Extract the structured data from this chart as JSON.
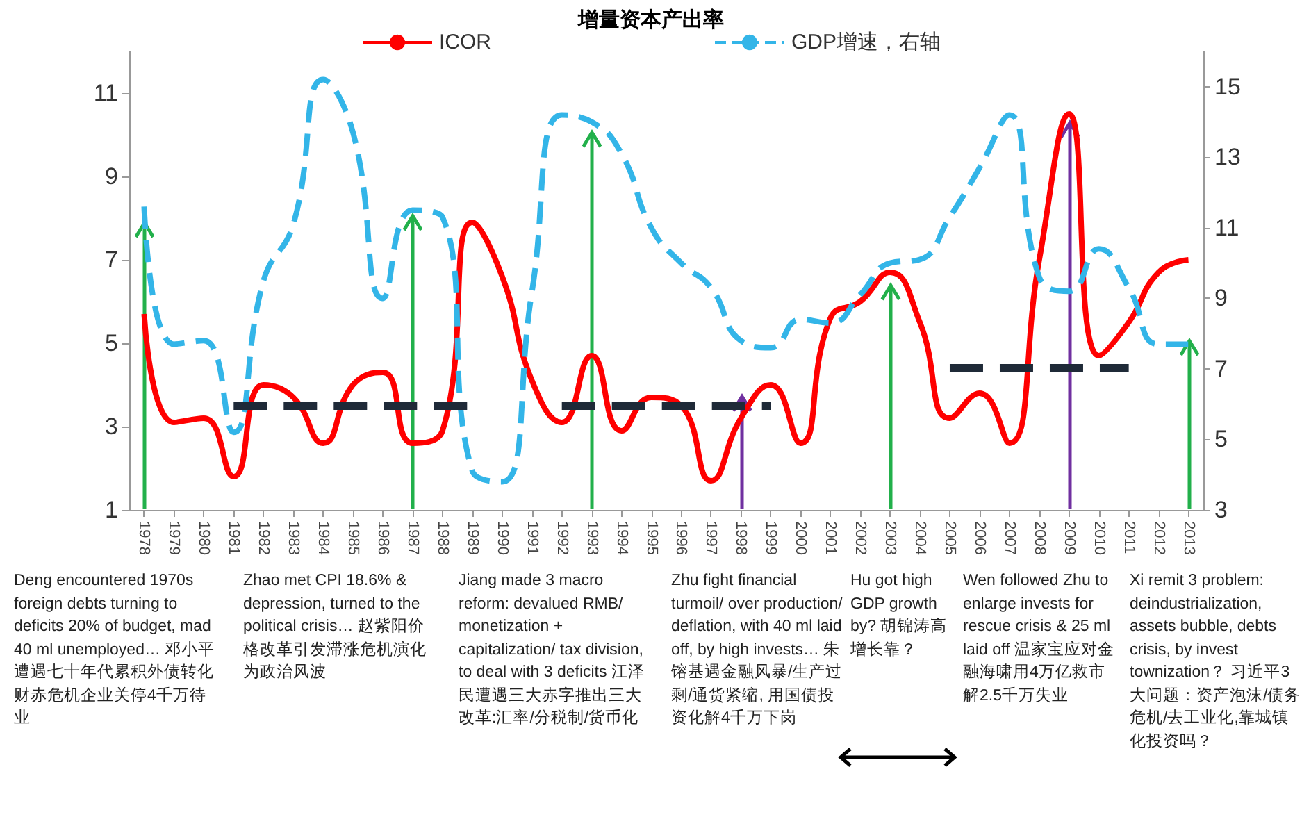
{
  "chart_data": {
    "type": "line",
    "title": "增量资本产出率",
    "categories": [
      "1978",
      "1979",
      "1980",
      "1981",
      "1982",
      "1983",
      "1984",
      "1985",
      "1986",
      "1987",
      "1988",
      "1989",
      "1990",
      "1991",
      "1992",
      "1993",
      "1994",
      "1995",
      "1996",
      "1997",
      "1998",
      "1999",
      "2000",
      "2001",
      "2002",
      "2003",
      "2004",
      "2005",
      "2006",
      "2007",
      "2008",
      "2009",
      "2010",
      "2011",
      "2012",
      "2013"
    ],
    "series": [
      {
        "name": "ICOR",
        "color": "#ff0000",
        "line_style": "solid",
        "values": [
          5.7,
          3.1,
          3.2,
          1.8,
          4.0,
          3.7,
          2.6,
          4.0,
          4.3,
          2.6,
          2.9,
          7.9,
          6.6,
          4.1,
          3.1,
          4.7,
          2.9,
          3.7,
          3.5,
          1.7,
          3.2,
          4.0,
          2.6,
          5.6,
          6.0,
          6.7,
          5.5,
          3.2,
          3.8,
          2.6,
          7.0,
          10.5,
          4.7,
          5.5,
          6.7,
          7.0
        ]
      },
      {
        "name": "GDP增速，右轴",
        "color": "#33b5e8",
        "line_style": "dashed",
        "axis": "y2",
        "values": [
          11.6,
          7.7,
          7.8,
          5.2,
          9.5,
          11.1,
          15.2,
          13.7,
          9.0,
          11.5,
          11.3,
          4.1,
          3.8,
          9.2,
          14.2,
          14.0,
          13.1,
          11.0,
          10.0,
          9.3,
          7.8,
          7.6,
          8.4,
          8.3,
          9.1,
          10.0,
          10.1,
          11.3,
          12.7,
          14.2,
          9.6,
          9.2,
          10.4,
          9.3,
          7.7,
          7.7
        ]
      },
      {
        "color": "#1f2a38",
        "line_style": "dashed",
        "values": [
          null,
          null,
          null,
          3.5,
          3.5,
          3.5,
          3.5,
          3.5,
          3.5,
          3.5,
          3.5,
          3.5,
          null,
          null,
          3.5,
          3.5,
          3.5,
          3.5,
          3.5,
          3.5,
          3.5,
          3.5,
          null,
          null,
          null,
          null,
          null,
          4.4,
          4.4,
          4.4,
          4.4,
          4.4,
          4.4,
          4.4,
          null,
          null
        ]
      }
    ],
    "ylim": [
      1,
      12
    ],
    "yticks": [
      1,
      3,
      5,
      7,
      9,
      11
    ],
    "y2lim": [
      3,
      16
    ],
    "y2ticks": [
      3,
      5,
      7,
      9,
      11,
      13,
      15
    ],
    "grid": false,
    "legend": "top",
    "marker": "none",
    "annotations": [
      "Deng encountered 1970s foreign debts turning to deficits 20% of budget, mad 40 ml unemployed… 邓小平遭遇七十年代累积外债转化财赤危机企业关停4千万待业",
      "Zhao met CPI 18.6% & depression, turned to the political crisis… 赵紫阳价格改革引发滞涨危机演化为政治风波",
      "Jiang made 3 macro reform: devalued RMB/ monetization + capitalization/ tax division, to deal with 3 deficits 江泽民遭遇三大赤字推出三大改革:汇率/分税制/货币化",
      "Zhu fight financial turmoil/ over production/ deflation, with 40 ml laid off, by high invests… 朱镕基遇金融风暴/生产过剩/通货紧缩, 用国债投资化解4千万下岗",
      "Hu got high GDP growth by? 胡锦涛高增长靠？",
      "Wen followed Zhu to enlarge invests for rescue crisis & 25 ml laid off 温家宝应对金融海啸用4万亿救市解2.5千万失业",
      "Xi remit 3 problem: deindustrialization, assets bubble, debts crisis, by invest townization？ 习近平3大问题：资产泡沫/债务危机/去工业化,靠城镇化投资吗？"
    ]
  }
}
